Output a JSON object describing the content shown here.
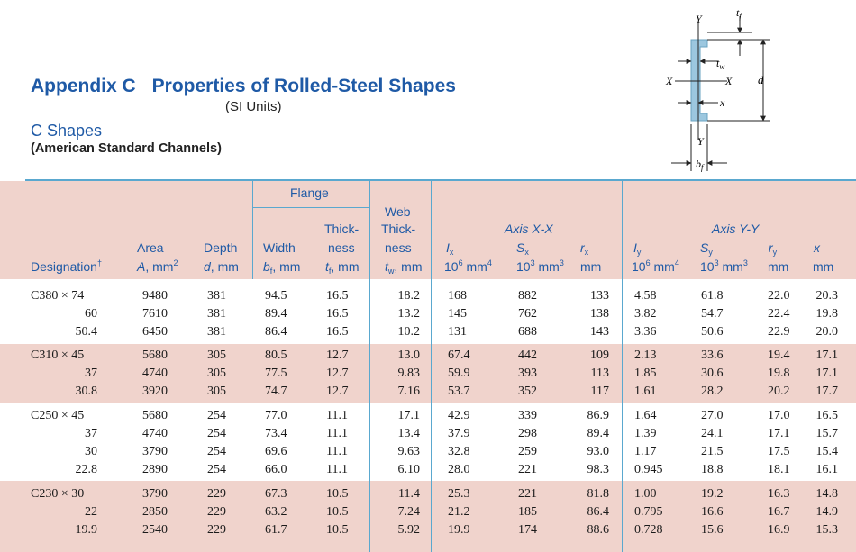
{
  "title": {
    "appendix": "Appendix C",
    "subject": "Properties of Rolled-Steel Shapes",
    "units": "(SI Units)",
    "shape": "C Shapes",
    "family": "(American Standard Channels)"
  },
  "diagram": {
    "y_top": "Y",
    "y_bottom": "Y",
    "x_left": "X",
    "x_right": "X",
    "tf": "t",
    "tf_sub": "f",
    "tw": "t",
    "tw_sub": "w",
    "x_bar": "x",
    "d": "d",
    "bf": "b",
    "bf_sub": "f"
  },
  "headers": {
    "flange": "Flange",
    "web_1": "Web",
    "web_2": "Thick-",
    "web_3": "ness",
    "web_var": "t",
    "web_sub": "w",
    "web_unit": ", mm",
    "axis_xx": "Axis X-X",
    "axis_yy": "Axis Y-Y",
    "designation": "Designation",
    "designation_mark": "†",
    "area_1": "Area",
    "area_var": "A",
    "area_unit": ", mm",
    "area_exp": "2",
    "depth_1": "Depth",
    "depth_var": "d",
    "depth_unit": ", mm",
    "width_1": "Width",
    "width_var": "b",
    "width_sub": "f",
    "width_unit": ", mm",
    "thick_1": "Thick-",
    "thick_2": "ness",
    "thick_var": "t",
    "thick_sub": "f",
    "thick_unit": ", mm",
    "ix_var": "I",
    "ix_sub": "x",
    "ix_unit": "10",
    "ix_exp": "6",
    "ix_unit2": " mm",
    "ix_exp2": "4",
    "sx_var": "S",
    "sx_sub": "x",
    "sx_unit": "10",
    "sx_exp": "3",
    "sx_unit2": " mm",
    "sx_exp2": "3",
    "rx_var": "r",
    "rx_sub": "x",
    "rx_unit": "mm",
    "iy_var": "I",
    "iy_sub": "y",
    "iy_unit": "10",
    "iy_exp": "6",
    "iy_unit2": " mm",
    "iy_exp2": "4",
    "sy_var": "S",
    "sy_sub": "y",
    "sy_unit": "10",
    "sy_exp": "3",
    "sy_unit2": " mm",
    "sy_exp2": "3",
    "ry_var": "r",
    "ry_sub": "y",
    "ry_unit": "mm",
    "xb_var": "x",
    "xb_unit": "mm"
  },
  "rows": [
    [
      "C380 × 74",
      "9480",
      "381",
      "94.5",
      "16.5",
      "18.2",
      "168",
      "882",
      "133",
      "4.58",
      "61.8",
      "22.0",
      "20.3"
    ],
    [
      "60",
      "7610",
      "381",
      "89.4",
      "16.5",
      "13.2",
      "145",
      "762",
      "138",
      "3.82",
      "54.7",
      "22.4",
      "19.8"
    ],
    [
      "50.4",
      "6450",
      "381",
      "86.4",
      "16.5",
      "10.2",
      "131",
      "688",
      "143",
      "3.36",
      "50.6",
      "22.9",
      "20.0"
    ],
    [
      "C310 × 45",
      "5680",
      "305",
      "80.5",
      "12.7",
      "13.0",
      "67.4",
      "442",
      "109",
      "2.13",
      "33.6",
      "19.4",
      "17.1"
    ],
    [
      "37",
      "4740",
      "305",
      "77.5",
      "12.7",
      "9.83",
      "59.9",
      "393",
      "113",
      "1.85",
      "30.6",
      "19.8",
      "17.1"
    ],
    [
      "30.8",
      "3920",
      "305",
      "74.7",
      "12.7",
      "7.16",
      "53.7",
      "352",
      "117",
      "1.61",
      "28.2",
      "20.2",
      "17.7"
    ],
    [
      "C250 × 45",
      "5680",
      "254",
      "77.0",
      "11.1",
      "17.1",
      "42.9",
      "339",
      "86.9",
      "1.64",
      "27.0",
      "17.0",
      "16.5"
    ],
    [
      "37",
      "4740",
      "254",
      "73.4",
      "11.1",
      "13.4",
      "37.9",
      "298",
      "89.4",
      "1.39",
      "24.1",
      "17.1",
      "15.7"
    ],
    [
      "30",
      "3790",
      "254",
      "69.6",
      "11.1",
      "9.63",
      "32.8",
      "259",
      "93.0",
      "1.17",
      "21.5",
      "17.5",
      "15.4"
    ],
    [
      "22.8",
      "2890",
      "254",
      "66.0",
      "11.1",
      "6.10",
      "28.0",
      "221",
      "98.3",
      "0.945",
      "18.8",
      "18.1",
      "16.1"
    ],
    [
      "C230 × 30",
      "3790",
      "229",
      "67.3",
      "10.5",
      "11.4",
      "25.3",
      "221",
      "81.8",
      "1.00",
      "19.2",
      "16.3",
      "14.8"
    ],
    [
      "22",
      "2850",
      "229",
      "63.2",
      "10.5",
      "7.24",
      "21.2",
      "185",
      "86.4",
      "0.795",
      "16.6",
      "16.7",
      "14.9"
    ],
    [
      "19.9",
      "2540",
      "229",
      "61.7",
      "10.5",
      "5.92",
      "19.9",
      "174",
      "88.6",
      "0.728",
      "15.6",
      "16.9",
      "15.3"
    ]
  ]
}
